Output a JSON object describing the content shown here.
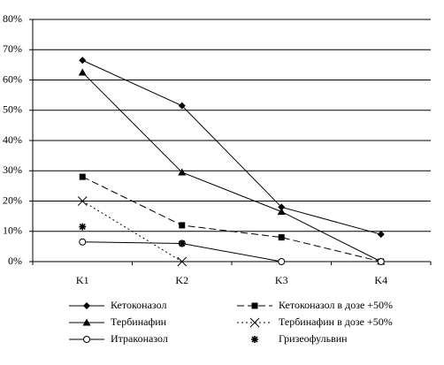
{
  "chart_data": {
    "type": "line",
    "categories": [
      "K1",
      "K2",
      "K3",
      "K4"
    ],
    "ylim": [
      0,
      80
    ],
    "yticks": [
      {
        "value": 0,
        "label": "0%"
      },
      {
        "value": 10,
        "label": "10%"
      },
      {
        "value": 20,
        "label": "20%"
      },
      {
        "value": 30,
        "label": "30%"
      },
      {
        "value": 40,
        "label": "40%"
      },
      {
        "value": 50,
        "label": "50%"
      },
      {
        "value": 60,
        "label": "60%"
      },
      {
        "value": 70,
        "label": "70%"
      },
      {
        "value": 80,
        "label": "80%"
      }
    ],
    "grid": true,
    "series": [
      {
        "name": "Кетоконазол",
        "color": "#000000",
        "marker": "diamond",
        "line_style": "solid",
        "values": [
          66.5,
          51.5,
          18,
          9
        ]
      },
      {
        "name": "Кетоконазол в дозе +50%",
        "color": "#000000",
        "marker": "square",
        "line_style": "dashed",
        "values": [
          28,
          12,
          8,
          0
        ]
      },
      {
        "name": "Тербинафин",
        "color": "#000000",
        "marker": "triangle",
        "line_style": "solid",
        "values": [
          62.5,
          29.5,
          16.5,
          0
        ]
      },
      {
        "name": "Тербинафин в дозе +50%",
        "color": "#000000",
        "marker": "x",
        "line_style": "dotted",
        "values": [
          20,
          0,
          null,
          null
        ]
      },
      {
        "name": "Итраконазол",
        "color": "#000000",
        "marker": "circle",
        "line_style": "solid",
        "values": [
          6.5,
          6,
          0,
          0
        ]
      },
      {
        "name": "Гризеофульвин",
        "color": "#000000",
        "marker": "asterisk",
        "line_style": "none",
        "values": [
          11.5,
          6,
          null,
          null
        ]
      }
    ]
  }
}
